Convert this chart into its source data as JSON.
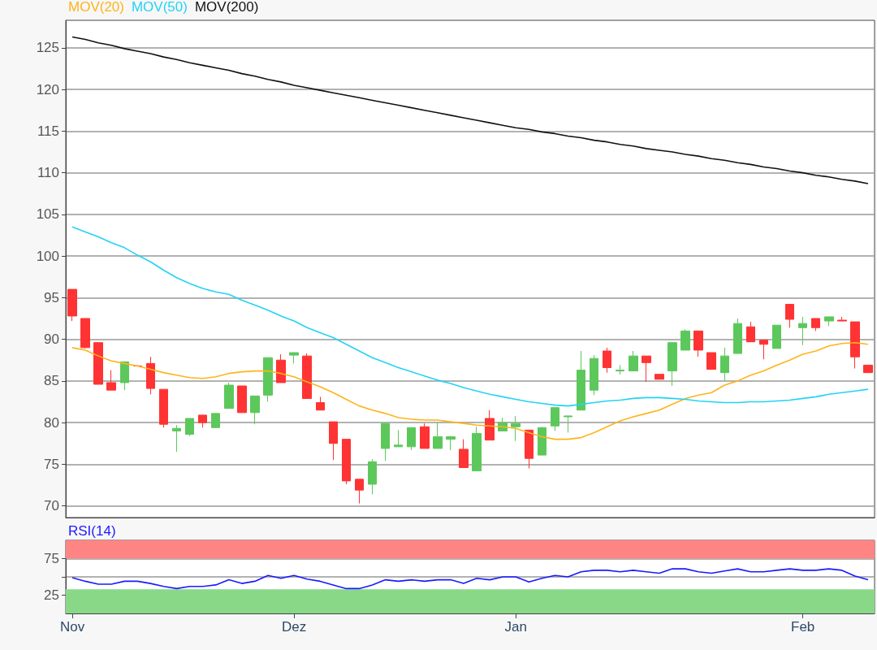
{
  "chart_data": [
    {
      "type": "candlestick",
      "legend": "top left",
      "grid": "y",
      "marker": "none",
      "tick_labels": "y",
      "categories": [
        null,
        null,
        null,
        null,
        null,
        null,
        null,
        null,
        null,
        null,
        null,
        null,
        null,
        null,
        null,
        null,
        null,
        null,
        null,
        null,
        null,
        null,
        null,
        null,
        null,
        null,
        null,
        null,
        null,
        null,
        null,
        null,
        null,
        null,
        null,
        null,
        null,
        null,
        null,
        null,
        null,
        null,
        null,
        null,
        null,
        null,
        null,
        null,
        null,
        null,
        null,
        null,
        null,
        null,
        null,
        null,
        null,
        null,
        null,
        null,
        null,
        null
      ],
      "ylim": [
        68.6,
        128.3
      ],
      "yticks": [
        70,
        75,
        80,
        85,
        90,
        95,
        100,
        105,
        110,
        115,
        120,
        125
      ],
      "ohlc": [
        [
          96.0,
          96.0,
          92.2,
          92.8
        ],
        [
          92.5,
          92.5,
          88.9,
          89.0
        ],
        [
          89.6,
          89.6,
          84.6,
          84.6
        ],
        [
          84.8,
          86.3,
          83.9,
          83.9
        ],
        [
          84.8,
          87.3,
          83.9,
          87.3
        ],
        [
          86.8,
          86.9,
          86.8,
          86.8
        ],
        [
          87.1,
          87.9,
          83.4,
          84.1
        ],
        [
          84.0,
          84.0,
          79.4,
          79.8
        ],
        [
          79.0,
          79.7,
          76.5,
          79.3
        ],
        [
          78.6,
          80.5,
          78.4,
          80.5
        ],
        [
          80.9,
          80.9,
          79.4,
          80.0
        ],
        [
          79.4,
          81.1,
          79.4,
          81.1
        ],
        [
          81.7,
          84.8,
          81.7,
          84.5
        ],
        [
          84.4,
          84.4,
          81.2,
          81.2
        ],
        [
          81.2,
          83.2,
          79.8,
          83.2
        ],
        [
          83.3,
          87.8,
          82.5,
          87.8
        ],
        [
          87.5,
          88.2,
          84.8,
          84.8
        ],
        [
          88.1,
          88.4,
          87.1,
          88.4
        ],
        [
          88.0,
          88.3,
          82.9,
          82.9
        ],
        [
          82.4,
          83.1,
          81.5,
          81.5
        ],
        [
          80.1,
          80.1,
          75.5,
          77.5
        ],
        [
          78.0,
          78.0,
          72.6,
          73.0
        ],
        [
          73.2,
          73.2,
          70.3,
          71.9
        ],
        [
          72.6,
          75.6,
          71.4,
          75.3
        ],
        [
          76.9,
          79.9,
          75.4,
          79.9
        ],
        [
          77.1,
          79.1,
          77.1,
          77.3
        ],
        [
          77.1,
          79.4,
          76.7,
          79.4
        ],
        [
          79.5,
          79.9,
          76.9,
          76.9
        ],
        [
          76.9,
          80.0,
          76.9,
          78.3
        ],
        [
          78.0,
          78.4,
          76.7,
          78.3
        ],
        [
          76.8,
          78.0,
          74.6,
          74.6
        ],
        [
          74.2,
          79.5,
          74.2,
          78.7
        ],
        [
          80.5,
          81.5,
          77.9,
          77.9
        ],
        [
          79.0,
          80.6,
          79.0,
          80.0
        ],
        [
          79.5,
          80.8,
          77.8,
          79.9
        ],
        [
          79.1,
          79.1,
          74.5,
          75.7
        ],
        [
          76.1,
          79.5,
          76.1,
          79.4
        ],
        [
          79.6,
          81.8,
          79.0,
          81.8
        ],
        [
          80.7,
          80.8,
          78.8,
          80.8
        ],
        [
          81.5,
          88.6,
          81.5,
          86.3
        ],
        [
          83.9,
          88.1,
          83.3,
          87.7
        ],
        [
          88.6,
          89.0,
          86.0,
          86.6
        ],
        [
          86.2,
          86.9,
          85.8,
          86.3
        ],
        [
          86.2,
          88.6,
          86.2,
          88.0
        ],
        [
          88.0,
          88.0,
          84.9,
          87.2
        ],
        [
          85.8,
          85.8,
          85.2,
          85.2
        ],
        [
          86.2,
          89.6,
          84.4,
          89.6
        ],
        [
          88.7,
          91.2,
          88.7,
          91.0
        ],
        [
          91.0,
          91.0,
          87.9,
          88.7
        ],
        [
          88.4,
          88.4,
          86.4,
          86.4
        ],
        [
          86.0,
          89.0,
          85.0,
          88.0
        ],
        [
          88.3,
          92.5,
          88.3,
          91.9
        ],
        [
          91.5,
          92.1,
          89.7,
          89.7
        ],
        [
          89.9,
          89.9,
          87.6,
          89.4
        ],
        [
          88.9,
          91.7,
          88.9,
          91.7
        ],
        [
          94.2,
          94.2,
          91.4,
          92.4
        ],
        [
          91.4,
          92.7,
          89.3,
          91.9
        ],
        [
          92.5,
          92.5,
          91.0,
          91.4
        ],
        [
          92.2,
          92.7,
          91.6,
          92.7
        ],
        [
          92.3,
          92.7,
          92.2,
          92.2
        ],
        [
          92.1,
          92.1,
          86.5,
          87.9
        ],
        [
          86.9,
          86.9,
          86.0,
          86.0
        ]
      ],
      "colors": [
        "#ff3333",
        "#ff3333",
        "#ff3333",
        "#ff3333",
        "#5cc85c",
        "#ff3333",
        "#ff3333",
        "#ff3333",
        "#5cc85c",
        "#5cc85c",
        "#ff3333",
        "#5cc85c",
        "#5cc85c",
        "#ff3333",
        "#5cc85c",
        "#5cc85c",
        "#ff3333",
        "#5cc85c",
        "#ff3333",
        "#ff3333",
        "#ff3333",
        "#ff3333",
        "#ff3333",
        "#5cc85c",
        "#5cc85c",
        "#5cc85c",
        "#5cc85c",
        "#ff3333",
        "#5cc85c",
        "#5cc85c",
        "#ff3333",
        "#5cc85c",
        "#ff3333",
        "#5cc85c",
        "#5cc85c",
        "#ff3333",
        "#5cc85c",
        "#5cc85c",
        "#5cc85c",
        "#5cc85c",
        "#5cc85c",
        "#ff3333",
        "#5cc85c",
        "#5cc85c",
        "#ff3333",
        "#ff3333",
        "#5cc85c",
        "#5cc85c",
        "#ff3333",
        "#ff3333",
        "#5cc85c",
        "#5cc85c",
        "#ff3333",
        "#ff3333",
        "#5cc85c",
        "#ff3333",
        "#5cc85c",
        "#ff3333",
        "#5cc85c",
        "#ff3333",
        "#ff3333",
        "#ff3333"
      ],
      "series": [
        {
          "name": "MOV(20)",
          "type": "line",
          "color": "#ffb31a",
          "values": [
            89.0,
            88.7,
            88.0,
            87.4,
            87.1,
            86.8,
            86.4,
            86.0,
            85.7,
            85.4,
            85.3,
            85.5,
            85.9,
            86.1,
            86.2,
            86.2,
            85.9,
            85.5,
            84.9,
            84.3,
            83.6,
            82.8,
            82.0,
            81.5,
            81.1,
            80.6,
            80.4,
            80.3,
            80.3,
            80.1,
            79.9,
            79.7,
            79.6,
            79.5,
            79.3,
            78.8,
            78.3,
            78.0,
            78.0,
            78.2,
            78.8,
            79.5,
            80.2,
            80.7,
            81.1,
            81.5,
            82.2,
            82.9,
            83.3,
            83.6,
            84.5,
            85.0,
            85.7,
            86.2,
            86.9,
            87.5,
            88.2,
            88.6,
            89.2,
            89.5,
            89.6,
            89.4
          ]
        },
        {
          "name": "MOV(50)",
          "type": "line",
          "color": "#22d3f5",
          "values": [
            103.5,
            102.9,
            102.3,
            101.6,
            101.0,
            100.1,
            99.3,
            98.3,
            97.4,
            96.7,
            96.1,
            95.7,
            95.4,
            94.7,
            94.1,
            93.5,
            92.8,
            92.2,
            91.4,
            90.8,
            90.2,
            89.4,
            88.6,
            87.8,
            87.2,
            86.6,
            86.1,
            85.6,
            85.1,
            84.7,
            84.2,
            83.8,
            83.4,
            83.1,
            82.8,
            82.5,
            82.3,
            82.1,
            82.0,
            82.2,
            82.4,
            82.6,
            82.7,
            82.9,
            83.0,
            83.0,
            82.9,
            82.8,
            82.6,
            82.5,
            82.4,
            82.4,
            82.5,
            82.5,
            82.6,
            82.7,
            82.9,
            83.1,
            83.4,
            83.6,
            83.8,
            84.0
          ]
        },
        {
          "name": "MOV(200)",
          "type": "line",
          "color": "#111111",
          "values": [
            126.3,
            126.0,
            125.6,
            125.3,
            124.9,
            124.6,
            124.3,
            123.9,
            123.6,
            123.2,
            122.9,
            122.6,
            122.3,
            121.9,
            121.6,
            121.2,
            120.9,
            120.5,
            120.2,
            119.9,
            119.6,
            119.3,
            119.0,
            118.7,
            118.4,
            118.1,
            117.8,
            117.5,
            117.2,
            116.9,
            116.6,
            116.3,
            116.0,
            115.7,
            115.4,
            115.2,
            114.9,
            114.7,
            114.4,
            114.2,
            113.9,
            113.7,
            113.4,
            113.2,
            112.9,
            112.7,
            112.5,
            112.2,
            112.0,
            111.7,
            111.5,
            111.2,
            111.0,
            110.7,
            110.5,
            110.2,
            110.0,
            109.7,
            109.5,
            109.2,
            109.0,
            108.7
          ]
        }
      ]
    },
    {
      "type": "line",
      "legend": "top left",
      "grid": "y",
      "marker": "none",
      "categories": [
        "Nov",
        null,
        null,
        null,
        null,
        null,
        null,
        null,
        null,
        null,
        null,
        null,
        null,
        null,
        null,
        null,
        null,
        "Dez",
        null,
        null,
        null,
        null,
        null,
        null,
        null,
        null,
        null,
        null,
        null,
        null,
        null,
        null,
        null,
        null,
        "Jan",
        null,
        null,
        null,
        null,
        null,
        null,
        null,
        null,
        null,
        null,
        null,
        null,
        null,
        null,
        null,
        null,
        null,
        null,
        null,
        null,
        null,
        "Feb",
        null,
        null,
        null,
        null,
        null
      ],
      "ylim": [
        0,
        100
      ],
      "yticks": [
        25,
        {
          "value": 50,
          "label": null
        },
        75
      ],
      "bands": [
        {
          "axis": "y",
          "from": 75,
          "to": 100,
          "color": "#ff8585"
        },
        {
          "axis": "y",
          "from": 0,
          "to": 33,
          "color": "#88d888"
        }
      ],
      "series": [
        {
          "name": "RSI(14)",
          "type": "line",
          "color": "#1a1aff",
          "values": [
            49,
            44,
            40,
            40,
            44,
            44,
            41,
            37,
            34,
            37,
            37,
            39,
            46,
            41,
            44,
            52,
            48,
            52,
            47,
            44,
            39,
            34,
            34,
            39,
            46,
            44,
            46,
            44,
            46,
            46,
            41,
            48,
            46,
            50,
            50,
            43,
            48,
            52,
            50,
            57,
            59,
            59,
            57,
            59,
            57,
            55,
            61,
            61,
            57,
            55,
            58,
            61,
            57,
            57,
            59,
            61,
            59,
            59,
            61,
            59,
            51,
            46
          ]
        }
      ]
    }
  ]
}
